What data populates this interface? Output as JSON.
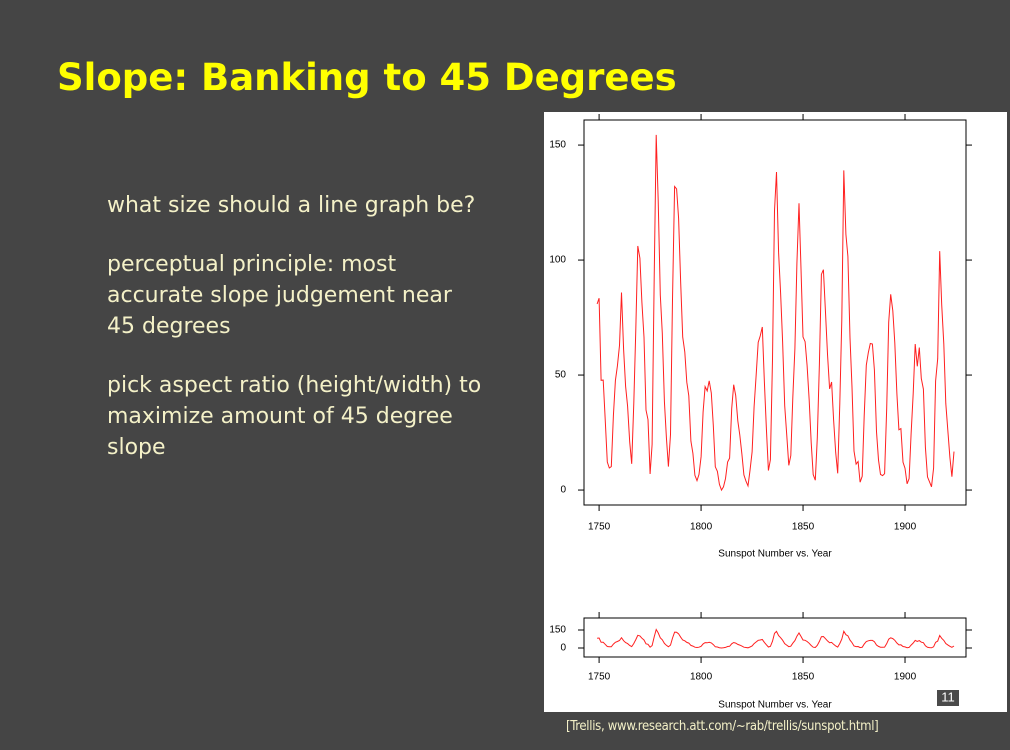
{
  "title": "Slope: Banking to 45 Degrees",
  "bullets": [
    "what size should a line graph be?",
    "perceptual principle: most accurate slope judgement near 45 degrees",
    "pick aspect ratio (height/width) to maximize amount of 45 degree slope"
  ],
  "citation": "[Trellis, www.research.att.com/~rab/trellis/sunspot.html]",
  "slide_number": "11",
  "chart_data": [
    {
      "type": "line",
      "xlabel": "Sunspot Number vs. Year",
      "x": [
        1749,
        1750,
        1751,
        1752,
        1753,
        1754,
        1755,
        1756,
        1757,
        1758,
        1759,
        1760,
        1761,
        1762,
        1763,
        1764,
        1765,
        1766,
        1767,
        1768,
        1769,
        1770,
        1771,
        1772,
        1773,
        1774,
        1775,
        1776,
        1777,
        1778,
        1779,
        1780,
        1781,
        1782,
        1783,
        1784,
        1785,
        1786,
        1787,
        1788,
        1789,
        1790,
        1791,
        1792,
        1793,
        1794,
        1795,
        1796,
        1797,
        1798,
        1799,
        1800,
        1801,
        1802,
        1803,
        1804,
        1805,
        1806,
        1807,
        1808,
        1809,
        1810,
        1811,
        1812,
        1813,
        1814,
        1815,
        1816,
        1817,
        1818,
        1819,
        1820,
        1821,
        1822,
        1823,
        1824,
        1825,
        1826,
        1827,
        1828,
        1829,
        1830,
        1831,
        1832,
        1833,
        1834,
        1835,
        1836,
        1837,
        1838,
        1839,
        1840,
        1841,
        1842,
        1843,
        1844,
        1845,
        1846,
        1847,
        1848,
        1849,
        1850,
        1851,
        1852,
        1853,
        1854,
        1855,
        1856,
        1857,
        1858,
        1859,
        1860,
        1861,
        1862,
        1863,
        1864,
        1865,
        1866,
        1867,
        1868,
        1869,
        1870,
        1871,
        1872,
        1873,
        1874,
        1875,
        1876,
        1877,
        1878,
        1879,
        1880,
        1881,
        1882,
        1883,
        1884,
        1885,
        1886,
        1887,
        1888,
        1889,
        1890,
        1891,
        1892,
        1893,
        1894,
        1895,
        1896,
        1897,
        1898,
        1899,
        1900,
        1901,
        1902,
        1903,
        1904,
        1905,
        1906,
        1907,
        1908,
        1909,
        1910,
        1911,
        1912,
        1913,
        1914,
        1915,
        1916,
        1917,
        1918,
        1919,
        1920,
        1921,
        1922,
        1923,
        1924
      ],
      "series": [
        {
          "color": "#ff2020",
          "values": [
            80.9,
            83.4,
            47.7,
            47.8,
            30.7,
            12.2,
            9.6,
            10.2,
            32.4,
            47.6,
            54.0,
            62.9,
            85.9,
            61.2,
            45.1,
            36.4,
            20.9,
            11.4,
            37.8,
            69.8,
            106.1,
            100.8,
            81.6,
            66.5,
            34.8,
            30.6,
            7.0,
            19.8,
            92.5,
            154.4,
            125.9,
            84.8,
            68.1,
            38.5,
            22.8,
            10.2,
            24.1,
            82.9,
            132.0,
            130.9,
            118.1,
            89.9,
            66.6,
            60.0,
            46.9,
            41.0,
            21.3,
            16.0,
            6.4,
            4.1,
            6.8,
            14.5,
            34.0,
            45.0,
            43.1,
            47.5,
            42.2,
            28.1,
            10.1,
            8.1,
            2.5,
            0.0,
            1.4,
            5.0,
            12.2,
            13.9,
            35.4,
            45.8,
            41.1,
            30.1,
            23.9,
            15.6,
            6.6,
            4.0,
            1.8,
            8.5,
            16.6,
            36.3,
            49.6,
            64.2,
            67.0,
            70.9,
            47.8,
            27.5,
            8.5,
            13.2,
            56.9,
            121.5,
            138.3,
            103.2,
            85.7,
            64.6,
            36.7,
            24.2,
            10.7,
            15.0,
            40.1,
            61.5,
            98.5,
            124.7,
            96.3,
            66.6,
            64.5,
            54.1,
            39.0,
            20.6,
            6.7,
            4.3,
            22.7,
            54.8,
            93.8,
            95.8,
            77.2,
            59.1,
            44.0,
            47.0,
            30.5,
            16.3,
            7.3,
            37.6,
            74.0,
            139.0,
            111.2,
            101.6,
            66.2,
            44.7,
            17.0,
            11.3,
            12.4,
            3.4,
            6.0,
            32.3,
            54.3,
            59.7,
            63.7,
            63.5,
            52.2,
            25.4,
            13.1,
            6.8,
            6.3,
            7.1,
            35.6,
            73.0,
            85.1,
            78.0,
            64.0,
            41.8,
            26.2,
            26.7,
            12.1,
            9.5,
            2.7,
            5.0,
            24.4,
            42.0,
            63.5,
            53.8,
            62.0,
            48.5,
            43.9,
            18.6,
            5.7,
            3.6,
            1.4,
            9.6,
            47.4,
            57.1,
            103.9,
            80.6,
            63.6,
            37.6,
            26.1,
            14.2,
            5.8,
            16.7
          ]
        }
      ],
      "xlim": [
        1742.6,
        1929.9
      ],
      "ylim": [
        -6.5,
        160.9
      ],
      "xticks": [
        1750,
        1800,
        1850,
        1900
      ],
      "yticks": [
        0,
        50,
        100,
        150
      ]
    },
    {
      "type": "line",
      "xlabel": "Sunspot Number vs. Year",
      "x": [
        1749,
        1750,
        1751,
        1752,
        1753,
        1754,
        1755,
        1756,
        1757,
        1758,
        1759,
        1760,
        1761,
        1762,
        1763,
        1764,
        1765,
        1766,
        1767,
        1768,
        1769,
        1770,
        1771,
        1772,
        1773,
        1774,
        1775,
        1776,
        1777,
        1778,
        1779,
        1780,
        1781,
        1782,
        1783,
        1784,
        1785,
        1786,
        1787,
        1788,
        1789,
        1790,
        1791,
        1792,
        1793,
        1794,
        1795,
        1796,
        1797,
        1798,
        1799,
        1800,
        1801,
        1802,
        1803,
        1804,
        1805,
        1806,
        1807,
        1808,
        1809,
        1810,
        1811,
        1812,
        1813,
        1814,
        1815,
        1816,
        1817,
        1818,
        1819,
        1820,
        1821,
        1822,
        1823,
        1824,
        1825,
        1826,
        1827,
        1828,
        1829,
        1830,
        1831,
        1832,
        1833,
        1834,
        1835,
        1836,
        1837,
        1838,
        1839,
        1840,
        1841,
        1842,
        1843,
        1844,
        1845,
        1846,
        1847,
        1848,
        1849,
        1850,
        1851,
        1852,
        1853,
        1854,
        1855,
        1856,
        1857,
        1858,
        1859,
        1860,
        1861,
        1862,
        1863,
        1864,
        1865,
        1866,
        1867,
        1868,
        1869,
        1870,
        1871,
        1872,
        1873,
        1874,
        1875,
        1876,
        1877,
        1878,
        1879,
        1880,
        1881,
        1882,
        1883,
        1884,
        1885,
        1886,
        1887,
        1888,
        1889,
        1890,
        1891,
        1892,
        1893,
        1894,
        1895,
        1896,
        1897,
        1898,
        1899,
        1900,
        1901,
        1902,
        1903,
        1904,
        1905,
        1906,
        1907,
        1908,
        1909,
        1910,
        1911,
        1912,
        1913,
        1914,
        1915,
        1916,
        1917,
        1918,
        1919,
        1920,
        1921,
        1922,
        1923,
        1924
      ],
      "series": [
        {
          "color": "#ff2020",
          "values": [
            80.9,
            83.4,
            47.7,
            47.8,
            30.7,
            12.2,
            9.6,
            10.2,
            32.4,
            47.6,
            54.0,
            62.9,
            85.9,
            61.2,
            45.1,
            36.4,
            20.9,
            11.4,
            37.8,
            69.8,
            106.1,
            100.8,
            81.6,
            66.5,
            34.8,
            30.6,
            7.0,
            19.8,
            92.5,
            154.4,
            125.9,
            84.8,
            68.1,
            38.5,
            22.8,
            10.2,
            24.1,
            82.9,
            132.0,
            130.9,
            118.1,
            89.9,
            66.6,
            60.0,
            46.9,
            41.0,
            21.3,
            16.0,
            6.4,
            4.1,
            6.8,
            14.5,
            34.0,
            45.0,
            43.1,
            47.5,
            42.2,
            28.1,
            10.1,
            8.1,
            2.5,
            0.0,
            1.4,
            5.0,
            12.2,
            13.9,
            35.4,
            45.8,
            41.1,
            30.1,
            23.9,
            15.6,
            6.6,
            4.0,
            1.8,
            8.5,
            16.6,
            36.3,
            49.6,
            64.2,
            67.0,
            70.9,
            47.8,
            27.5,
            8.5,
            13.2,
            56.9,
            121.5,
            138.3,
            103.2,
            85.7,
            64.6,
            36.7,
            24.2,
            10.7,
            15.0,
            40.1,
            61.5,
            98.5,
            124.7,
            96.3,
            66.6,
            64.5,
            54.1,
            39.0,
            20.6,
            6.7,
            4.3,
            22.7,
            54.8,
            93.8,
            95.8,
            77.2,
            59.1,
            44.0,
            47.0,
            30.5,
            16.3,
            7.3,
            37.6,
            74.0,
            139.0,
            111.2,
            101.6,
            66.2,
            44.7,
            17.0,
            11.3,
            12.4,
            3.4,
            6.0,
            32.3,
            54.3,
            59.7,
            63.7,
            63.5,
            52.2,
            25.4,
            13.1,
            6.8,
            6.3,
            7.1,
            35.6,
            73.0,
            85.1,
            78.0,
            64.0,
            41.8,
            26.2,
            26.7,
            12.1,
            9.5,
            2.7,
            5.0,
            24.4,
            42.0,
            63.5,
            53.8,
            62.0,
            48.5,
            43.9,
            18.6,
            5.7,
            3.6,
            1.4,
            9.6,
            47.4,
            57.1,
            103.9,
            80.6,
            63.6,
            37.6,
            26.1,
            14.2,
            5.8,
            16.7
          ]
        }
      ],
      "xlim": [
        1742.6,
        1929.9
      ],
      "ylim": [
        -75,
        250
      ],
      "xticks": [
        1750,
        1800,
        1850,
        1900
      ],
      "yticks": [
        0,
        150
      ]
    }
  ]
}
